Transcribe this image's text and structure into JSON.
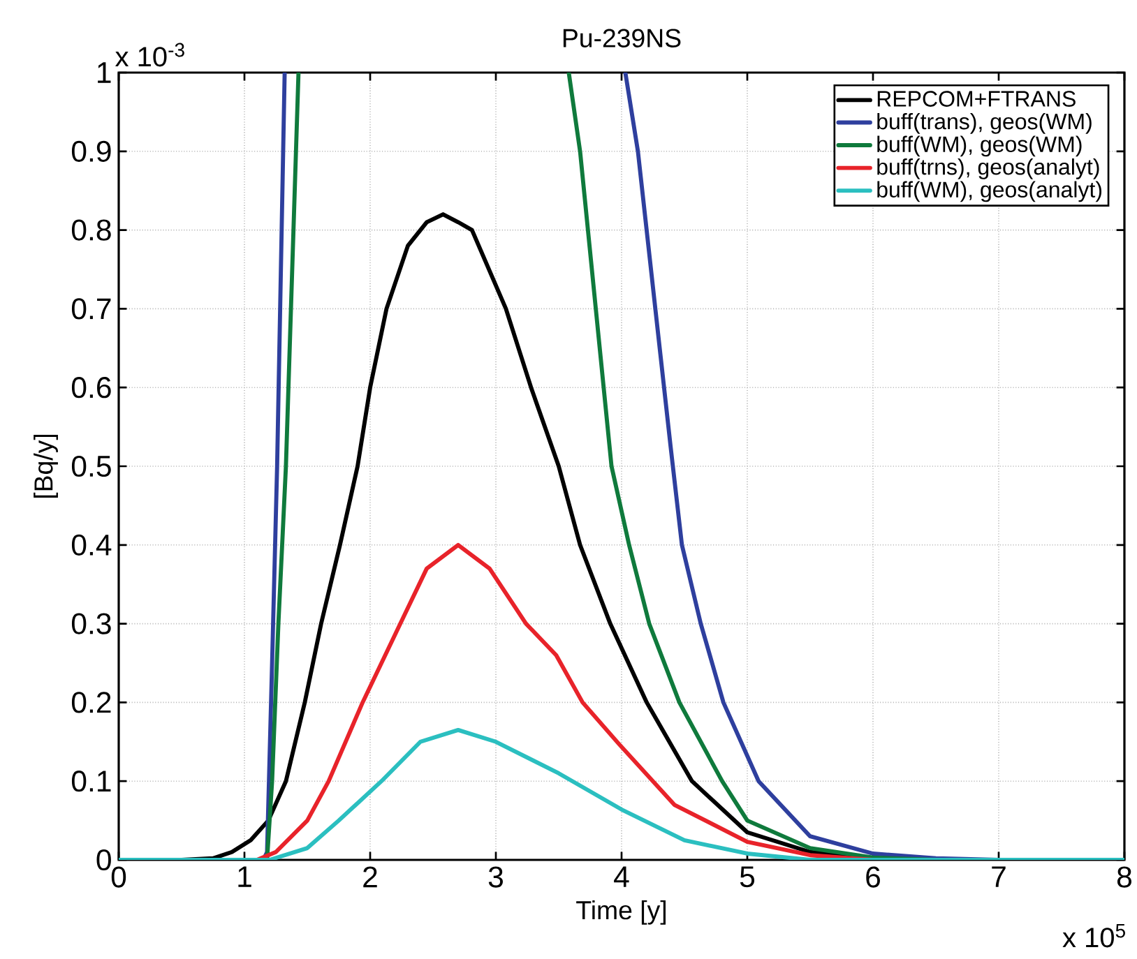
{
  "chart_data": {
    "type": "line",
    "title": "Pu-239NS",
    "xlabel": "Time [y]",
    "ylabel": "[Bq/y]",
    "annotations": [
      "x 10$^{-3}$",
      "x 10$^{5}$"
    ],
    "xlim": [
      0,
      8
    ],
    "ylim": [
      0,
      1
    ],
    "xticks": [
      0,
      1,
      2,
      3,
      4,
      5,
      6,
      7,
      8
    ],
    "yticks": [
      0,
      0.1,
      0.2,
      0.3,
      0.4,
      0.5,
      0.6,
      0.7,
      0.8,
      0.9,
      1
    ],
    "grid": true,
    "legend": "top right",
    "line_style": "solid",
    "series": [
      {
        "name": "REPCOM+FTRANS",
        "color": "#000000",
        "x": [
          0,
          0.5,
          0.75,
          0.9,
          1.05,
          1.19,
          1.33,
          1.48,
          1.61,
          1.76,
          1.9,
          2.0,
          2.13,
          2.3,
          2.45,
          2.58,
          2.7,
          2.81,
          3.08,
          3.28,
          3.5,
          3.67,
          3.91,
          4.2,
          4.56,
          5,
          5.5,
          6,
          6.5,
          8
        ],
        "values": [
          0,
          0,
          0.002,
          0.01,
          0.025,
          0.05,
          0.1,
          0.2,
          0.3,
          0.4,
          0.5,
          0.6,
          0.7,
          0.78,
          0.81,
          0.82,
          0.81,
          0.8,
          0.7,
          0.6,
          0.5,
          0.4,
          0.3,
          0.2,
          0.1,
          0.035,
          0.01,
          0.002,
          0,
          0
        ]
      },
      {
        "name": "buff(trans), geos(WM)",
        "color": "#2e3f9e",
        "x": [
          0,
          1.0,
          1.15,
          1.18,
          1.22,
          1.26,
          1.29,
          1.32,
          2.5,
          4.03,
          4.13,
          4.39,
          4.48,
          4.63,
          4.81,
          5.09,
          5.5,
          6,
          6.5,
          7,
          8
        ],
        "values": [
          0,
          0,
          0,
          0.01,
          0.25,
          0.5,
          0.75,
          1,
          null,
          1,
          0.9,
          0.525,
          0.4,
          0.3,
          0.2,
          0.1,
          0.03,
          0.008,
          0.002,
          0,
          0
        ]
      },
      {
        "name": "buff(WM), geos(WM)",
        "color": "#0f7a3c",
        "x": [
          0,
          1.0,
          1.18,
          1.22,
          1.27,
          1.33,
          1.38,
          1.43,
          2.5,
          3.58,
          3.67,
          3.92,
          4.06,
          4.22,
          4.46,
          4.8,
          5,
          5.5,
          6,
          6.5,
          8
        ],
        "values": [
          0,
          0,
          0,
          0.1,
          0.3,
          0.5,
          0.75,
          1,
          null,
          1,
          0.9,
          0.5,
          0.4,
          0.3,
          0.2,
          0.1,
          0.05,
          0.015,
          0.003,
          0,
          0
        ]
      },
      {
        "name": "buff(trns), geos(analyt)",
        "color": "#e8232a",
        "x": [
          0,
          1.1,
          1.25,
          1.5,
          1.67,
          1.94,
          2.24,
          2.45,
          2.7,
          2.95,
          3.24,
          3.48,
          3.69,
          3.98,
          4.42,
          5,
          5.5,
          6,
          8
        ],
        "values": [
          0,
          0,
          0.01,
          0.05,
          0.1,
          0.2,
          0.3,
          0.37,
          0.4,
          0.37,
          0.3,
          0.26,
          0.2,
          0.147,
          0.07,
          0.023,
          0.006,
          0,
          0
        ]
      },
      {
        "name": "buff(WM), geos(analyt)",
        "color": "#2bbfc0",
        "x": [
          0,
          1.2,
          1.5,
          1.75,
          2.09,
          2.4,
          2.7,
          3.0,
          3.5,
          4.0,
          4.5,
          5,
          5.5,
          8
        ],
        "values": [
          0,
          0,
          0.015,
          0.05,
          0.1,
          0.15,
          0.165,
          0.15,
          0.11,
          0.064,
          0.025,
          0.008,
          0,
          0
        ]
      }
    ]
  }
}
